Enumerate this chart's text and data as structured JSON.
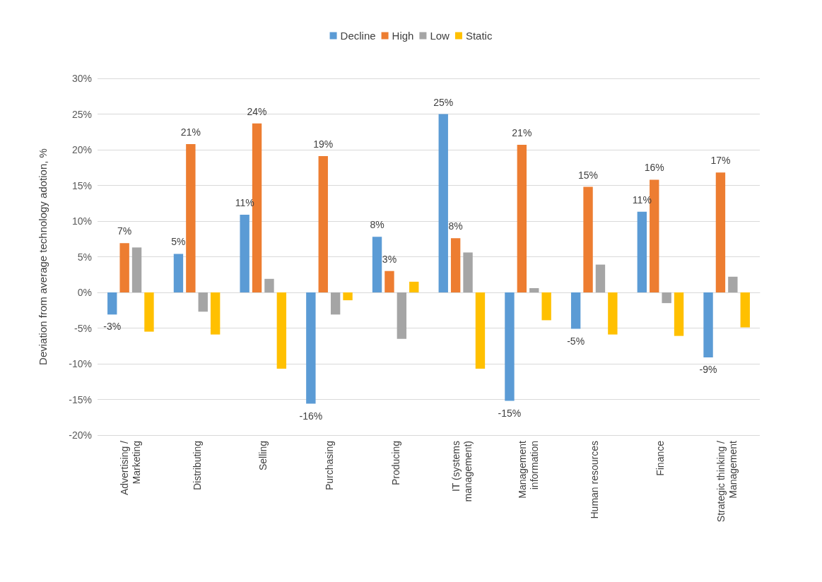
{
  "chart_data": {
    "type": "bar",
    "ylabel": "Deviation from average technology adotion, %",
    "categories": [
      "Advertising /\nMarketing",
      "Distributing",
      "Selling",
      "Purchasing",
      "Producing",
      "IT (systems\nmanagement)",
      "Management\ninformation",
      "Human resources",
      "Finance",
      "Strategic thinking /\nManagement"
    ],
    "series": [
      {
        "name": "Decline",
        "color": "#5b9bd5",
        "values": [
          -3.1,
          5.4,
          10.9,
          -15.6,
          7.8,
          25,
          -15.2,
          -5.1,
          11.3,
          -9.1
        ],
        "value_labels": [
          "-3%",
          "5%",
          "11%",
          "-16%",
          "8%",
          "25%",
          "-15%",
          "-5%",
          "11%",
          "-9%"
        ]
      },
      {
        "name": "High",
        "color": "#ed7d31",
        "values": [
          6.9,
          20.8,
          23.7,
          19.1,
          3.0,
          7.6,
          20.7,
          14.8,
          15.8,
          16.8
        ],
        "value_labels": [
          "7%",
          "21%",
          "24%",
          "19%",
          "3%",
          "8%",
          "21%",
          "15%",
          "16%",
          "17%"
        ]
      },
      {
        "name": "Low",
        "color": "#a5a5a5",
        "values": [
          6.3,
          -2.7,
          1.9,
          -3.1,
          -6.5,
          5.6,
          0.6,
          3.9,
          -1.5,
          2.2
        ]
      },
      {
        "name": "Static",
        "color": "#ffc000",
        "values": [
          -5.5,
          -5.9,
          -10.7,
          -1.1,
          1.5,
          -10.7,
          -3.9,
          -5.9,
          -6.1,
          -4.9
        ]
      }
    ],
    "ylim": [
      -20,
      30
    ],
    "yticks": [
      {
        "value": -20,
        "label": "-20%"
      },
      {
        "value": -15,
        "label": "-15%"
      },
      {
        "value": -10,
        "label": "-10%"
      },
      {
        "value": -5,
        "label": "-5%"
      },
      {
        "value": 0,
        "label": "0%"
      },
      {
        "value": 5,
        "label": "5%"
      },
      {
        "value": 10,
        "label": "10%"
      },
      {
        "value": 15,
        "label": "15%"
      },
      {
        "value": 20,
        "label": "20%"
      },
      {
        "value": 25,
        "label": "25%"
      },
      {
        "value": 30,
        "label": "30%"
      }
    ],
    "grid": "y",
    "legend": "top"
  }
}
